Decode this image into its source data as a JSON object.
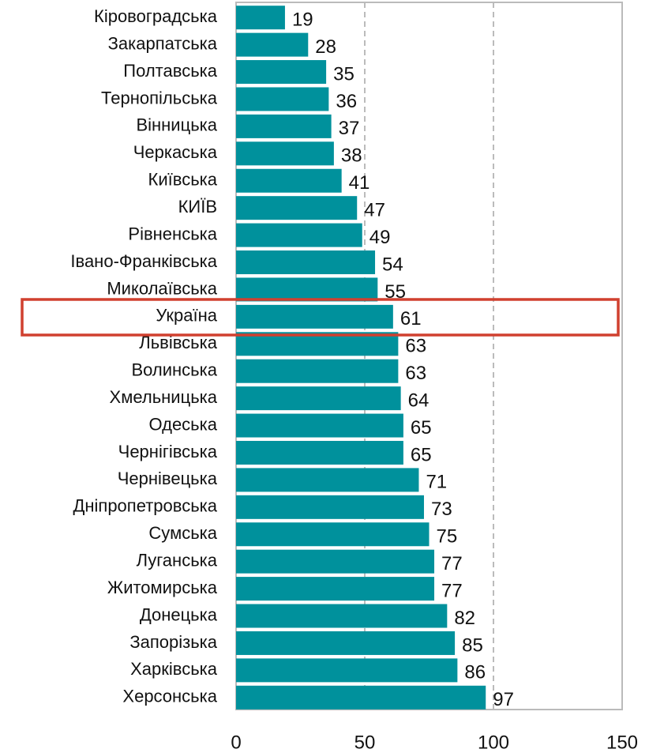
{
  "chart_data": {
    "type": "bar",
    "orientation": "horizontal",
    "categories": [
      "Кіровоградська",
      "Закарпатська",
      "Полтавська",
      "Тернопільська",
      "Вінницька",
      "Черкаська",
      "Київська",
      "КИЇВ",
      "Рівненська",
      "Івано-Франківська",
      "Миколаївська",
      "Україна",
      "Львівська",
      "Волинська",
      "Хмельницька",
      "Одеська",
      "Чернігівська",
      "Чернівецька",
      "Дніпропетровська",
      "Сумська",
      "Луганська",
      "Житомирська",
      "Донецька",
      "Запорізька",
      "Харківська",
      "Херсонська"
    ],
    "values": [
      19,
      28,
      35,
      36,
      37,
      38,
      41,
      47,
      49,
      54,
      55,
      61,
      63,
      63,
      64,
      65,
      65,
      71,
      73,
      75,
      77,
      77,
      82,
      85,
      86,
      97
    ],
    "color": "#00919c",
    "xlim": [
      0,
      150
    ],
    "xticks": [
      0,
      50,
      100,
      150
    ],
    "grid": true
  }
}
